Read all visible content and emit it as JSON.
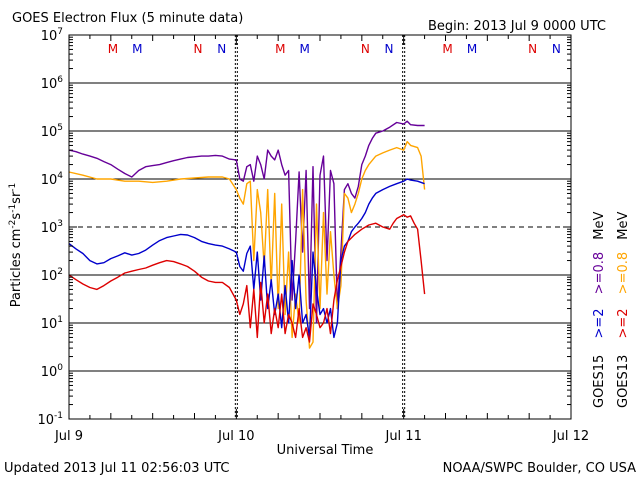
{
  "title": "GOES Electron Flux (5 minute data)",
  "begin": "Begin: 2013 Jul 9 0000 UTC",
  "updated": "Updated 2013 Jul 11 02:56:03 UTC",
  "credit": "NOAA/SWPC Boulder, CO USA",
  "chart_data": {
    "type": "line",
    "title": "GOES Electron Flux (5 minute data)",
    "xlabel": "Universal Time",
    "ylabel": "Particles cm-2s-1sr-1",
    "yscale": "log",
    "ylim": [
      0.1,
      10000000
    ],
    "xlim": [
      0,
      72
    ],
    "x_unit": "hours since 2013 Jul 9 0000 UTC",
    "x_ticks": [
      {
        "x": 0,
        "label": "Jul 9"
      },
      {
        "x": 24,
        "label": "Jul 10"
      },
      {
        "x": 48,
        "label": "Jul 11"
      },
      {
        "x": 72,
        "label": "Jul 12"
      }
    ],
    "y_ticks": [
      {
        "exp": "7",
        "base": "10"
      },
      {
        "exp": "6",
        "base": "10"
      },
      {
        "exp": "5",
        "base": "10"
      },
      {
        "exp": "4",
        "base": "10"
      },
      {
        "exp": "3",
        "base": "10"
      },
      {
        "exp": "2",
        "base": "10"
      },
      {
        "exp": "1",
        "base": "10"
      },
      {
        "exp": "0",
        "base": "10"
      },
      {
        "exp": "-1",
        "base": "10"
      }
    ],
    "threshold_line": 1000,
    "mn_markers": [
      {
        "x": 6.3,
        "label": "M",
        "color": "#dd0000"
      },
      {
        "x": 9.8,
        "label": "M",
        "color": "#0000cc"
      },
      {
        "x": 18.5,
        "label": "N",
        "color": "#dd0000"
      },
      {
        "x": 21.9,
        "label": "N",
        "color": "#0000cc"
      },
      {
        "x": 30.3,
        "label": "M",
        "color": "#dd0000"
      },
      {
        "x": 33.8,
        "label": "M",
        "color": "#0000cc"
      },
      {
        "x": 42.5,
        "label": "N",
        "color": "#dd0000"
      },
      {
        "x": 45.9,
        "label": "N",
        "color": "#0000cc"
      },
      {
        "x": 54.3,
        "label": "M",
        "color": "#dd0000"
      },
      {
        "x": 57.8,
        "label": "M",
        "color": "#0000cc"
      },
      {
        "x": 66.5,
        "label": "N",
        "color": "#dd0000"
      },
      {
        "x": 69.9,
        "label": "N",
        "color": "#0000cc"
      }
    ],
    "legend": [
      {
        "label": "GOES15 >=2 >=0.8 MeV",
        "sat": "GOES15",
        "e2": ">=2",
        "e08": ">=0.8",
        "unit": "MeV",
        "color2": "#0000cc",
        "color08": "#660099"
      },
      {
        "label": "GOES13 >=2 >=0.8 MeV",
        "sat": "GOES13",
        "e2": ">=2",
        "e08": ">=0.8",
        "unit": "MeV",
        "color2": "#dd0000",
        "color08": "#ffa500"
      }
    ],
    "series": [
      {
        "name": "GOES15 >=0.8 MeV",
        "color": "#660099",
        "points": [
          [
            0,
            40000
          ],
          [
            1,
            37000
          ],
          [
            2,
            33000
          ],
          [
            3,
            30000
          ],
          [
            4,
            27000
          ],
          [
            5,
            23000
          ],
          [
            6,
            20000
          ],
          [
            7,
            16000
          ],
          [
            8,
            13000
          ],
          [
            9,
            11000
          ],
          [
            10,
            15000
          ],
          [
            11,
            18000
          ],
          [
            12,
            19000
          ],
          [
            13,
            20000
          ],
          [
            14,
            22000
          ],
          [
            15,
            24000
          ],
          [
            16,
            26000
          ],
          [
            17,
            28000
          ],
          [
            18,
            29000
          ],
          [
            19,
            30000
          ],
          [
            20,
            30000
          ],
          [
            21,
            31000
          ],
          [
            22,
            30000
          ],
          [
            23,
            26000
          ],
          [
            24,
            25000
          ],
          [
            24.5,
            10000
          ],
          [
            25,
            9000
          ],
          [
            25.5,
            18000
          ],
          [
            26,
            20000
          ],
          [
            26.5,
            9000
          ],
          [
            27,
            30000
          ],
          [
            27.5,
            20000
          ],
          [
            28,
            10000
          ],
          [
            28.5,
            40000
          ],
          [
            29,
            30000
          ],
          [
            29.5,
            25000
          ],
          [
            30,
            40000
          ],
          [
            30.5,
            20000
          ],
          [
            31,
            12000
          ],
          [
            31.5,
            15000
          ],
          [
            32,
            30
          ],
          [
            32.5,
            500
          ],
          [
            33,
            14000
          ],
          [
            33.5,
            300
          ],
          [
            34,
            15000
          ],
          [
            34.5,
            20
          ],
          [
            35,
            18000
          ],
          [
            35.5,
            10
          ],
          [
            36,
            12000
          ],
          [
            36.5,
            30000
          ],
          [
            37,
            200
          ],
          [
            37.5,
            15000
          ],
          [
            38,
            8000
          ],
          [
            38.5,
            20
          ],
          [
            39,
            300
          ],
          [
            39.5,
            6000
          ],
          [
            40,
            8000
          ],
          [
            40.5,
            5000
          ],
          [
            41,
            4000
          ],
          [
            41.5,
            7000
          ],
          [
            42,
            20000
          ],
          [
            42.5,
            30000
          ],
          [
            43,
            50000
          ],
          [
            43.5,
            70000
          ],
          [
            44,
            90000
          ],
          [
            45,
            100000
          ],
          [
            46,
            120000
          ],
          [
            47,
            150000
          ],
          [
            48,
            140000
          ],
          [
            48.5,
            160000
          ],
          [
            49,
            135000
          ],
          [
            50,
            130000
          ],
          [
            51,
            130000
          ]
        ]
      },
      {
        "name": "GOES13 >=0.8 MeV",
        "color": "#ffa500",
        "points": [
          [
            0,
            14000
          ],
          [
            2,
            12000
          ],
          [
            4,
            10000
          ],
          [
            6,
            10000
          ],
          [
            8,
            9000
          ],
          [
            10,
            9000
          ],
          [
            12,
            8500
          ],
          [
            14,
            9000
          ],
          [
            16,
            10000
          ],
          [
            18,
            10500
          ],
          [
            20,
            11000
          ],
          [
            22,
            11000
          ],
          [
            23,
            10000
          ],
          [
            24,
            6000
          ],
          [
            24.5,
            4000
          ],
          [
            25,
            3000
          ],
          [
            25.5,
            8000
          ],
          [
            26,
            9000
          ],
          [
            26.5,
            200
          ],
          [
            27,
            6000
          ],
          [
            27.5,
            2000
          ],
          [
            28,
            150
          ],
          [
            28.5,
            6000
          ],
          [
            29,
            60
          ],
          [
            29.5,
            5000
          ],
          [
            30,
            20
          ],
          [
            30.5,
            3000
          ],
          [
            31,
            15
          ],
          [
            31.5,
            300
          ],
          [
            32,
            5
          ],
          [
            32.5,
            40
          ],
          [
            33,
            10
          ],
          [
            33.5,
            6000
          ],
          [
            34,
            30
          ],
          [
            34.5,
            3
          ],
          [
            35,
            4
          ],
          [
            35.5,
            3000
          ],
          [
            36,
            20
          ],
          [
            36.5,
            2000
          ],
          [
            37,
            40
          ],
          [
            37.5,
            800
          ],
          [
            38,
            100
          ],
          [
            38.5,
            20
          ],
          [
            39,
            60
          ],
          [
            39.5,
            5000
          ],
          [
            40,
            4000
          ],
          [
            40.5,
            2000
          ],
          [
            41,
            3000
          ],
          [
            41.5,
            5000
          ],
          [
            42,
            10000
          ],
          [
            42.5,
            15000
          ],
          [
            43,
            20000
          ],
          [
            44,
            30000
          ],
          [
            45,
            35000
          ],
          [
            46,
            40000
          ],
          [
            47,
            45000
          ],
          [
            48,
            40000
          ],
          [
            48.5,
            60000
          ],
          [
            49,
            50000
          ],
          [
            50,
            45000
          ],
          [
            50.5,
            30000
          ],
          [
            51,
            6000
          ]
        ]
      },
      {
        "name": "GOES15 >=2 MeV",
        "color": "#0000cc",
        "points": [
          [
            0,
            450
          ],
          [
            1,
            350
          ],
          [
            2,
            280
          ],
          [
            3,
            200
          ],
          [
            4,
            170
          ],
          [
            5,
            180
          ],
          [
            6,
            220
          ],
          [
            7,
            250
          ],
          [
            8,
            290
          ],
          [
            9,
            260
          ],
          [
            10,
            280
          ],
          [
            11,
            330
          ],
          [
            12,
            420
          ],
          [
            13,
            520
          ],
          [
            14,
            600
          ],
          [
            15,
            650
          ],
          [
            16,
            700
          ],
          [
            17,
            680
          ],
          [
            18,
            600
          ],
          [
            19,
            500
          ],
          [
            20,
            450
          ],
          [
            21,
            420
          ],
          [
            22,
            400
          ],
          [
            23,
            350
          ],
          [
            24,
            300
          ],
          [
            24.5,
            150
          ],
          [
            25,
            120
          ],
          [
            25.5,
            280
          ],
          [
            26,
            400
          ],
          [
            26.5,
            50
          ],
          [
            27,
            300
          ],
          [
            27.5,
            30
          ],
          [
            28,
            250
          ],
          [
            28.5,
            20
          ],
          [
            29,
            80
          ],
          [
            29.5,
            15
          ],
          [
            30,
            40
          ],
          [
            30.5,
            8
          ],
          [
            31,
            60
          ],
          [
            31.5,
            10
          ],
          [
            32,
            200
          ],
          [
            32.5,
            20
          ],
          [
            33,
            100
          ],
          [
            33.5,
            10
          ],
          [
            34,
            15
          ],
          [
            34.5,
            5
          ],
          [
            35,
            300
          ],
          [
            35.5,
            50
          ],
          [
            36,
            15
          ],
          [
            36.5,
            20
          ],
          [
            37,
            10
          ],
          [
            37.5,
            20
          ],
          [
            38,
            5
          ],
          [
            38.5,
            10
          ],
          [
            39,
            200
          ],
          [
            39.5,
            400
          ],
          [
            40,
            500
          ],
          [
            40.5,
            800
          ],
          [
            41,
            1000
          ],
          [
            41.5,
            1200
          ],
          [
            42,
            1500
          ],
          [
            42.5,
            2000
          ],
          [
            43,
            3000
          ],
          [
            43.5,
            4000
          ],
          [
            44,
            5000
          ],
          [
            45,
            6000
          ],
          [
            46,
            7000
          ],
          [
            47,
            8000
          ],
          [
            48,
            9000
          ],
          [
            48.5,
            10000
          ],
          [
            49,
            9500
          ],
          [
            50,
            9000
          ],
          [
            51,
            8000
          ]
        ]
      },
      {
        "name": "GOES13 >=2 MeV",
        "color": "#dd0000",
        "points": [
          [
            0,
            100
          ],
          [
            1,
            80
          ],
          [
            2,
            65
          ],
          [
            3,
            55
          ],
          [
            4,
            50
          ],
          [
            5,
            60
          ],
          [
            6,
            75
          ],
          [
            7,
            90
          ],
          [
            8,
            110
          ],
          [
            9,
            120
          ],
          [
            10,
            130
          ],
          [
            11,
            140
          ],
          [
            12,
            160
          ],
          [
            13,
            180
          ],
          [
            14,
            200
          ],
          [
            15,
            190
          ],
          [
            16,
            170
          ],
          [
            17,
            150
          ],
          [
            18,
            120
          ],
          [
            19,
            90
          ],
          [
            20,
            75
          ],
          [
            21,
            70
          ],
          [
            22,
            70
          ],
          [
            23,
            55
          ],
          [
            24,
            30
          ],
          [
            24.5,
            15
          ],
          [
            25,
            25
          ],
          [
            25.5,
            60
          ],
          [
            26,
            8
          ],
          [
            26.5,
            50
          ],
          [
            27,
            5
          ],
          [
            27.5,
            70
          ],
          [
            28,
            10
          ],
          [
            28.5,
            40
          ],
          [
            29,
            6
          ],
          [
            29.5,
            20
          ],
          [
            30,
            8
          ],
          [
            30.5,
            40
          ],
          [
            31,
            6
          ],
          [
            31.5,
            15
          ],
          [
            32,
            10
          ],
          [
            32.5,
            5
          ],
          [
            33,
            20
          ],
          [
            33.5,
            5
          ],
          [
            34,
            8
          ],
          [
            34.5,
            4
          ],
          [
            35,
            25
          ],
          [
            35.5,
            15
          ],
          [
            36,
            8
          ],
          [
            36.5,
            10
          ],
          [
            37,
            20
          ],
          [
            37.5,
            6
          ],
          [
            38,
            30
          ],
          [
            38.5,
            80
          ],
          [
            39,
            150
          ],
          [
            39.5,
            300
          ],
          [
            40,
            500
          ],
          [
            41,
            700
          ],
          [
            42,
            900
          ],
          [
            43,
            1100
          ],
          [
            44,
            1200
          ],
          [
            45,
            1000
          ],
          [
            46,
            900
          ],
          [
            46.5,
            1200
          ],
          [
            47,
            1500
          ],
          [
            48,
            1800
          ],
          [
            48.5,
            1600
          ],
          [
            49,
            1700
          ],
          [
            49.5,
            1200
          ],
          [
            50,
            900
          ],
          [
            50.5,
            200
          ],
          [
            51,
            40
          ]
        ]
      }
    ]
  }
}
